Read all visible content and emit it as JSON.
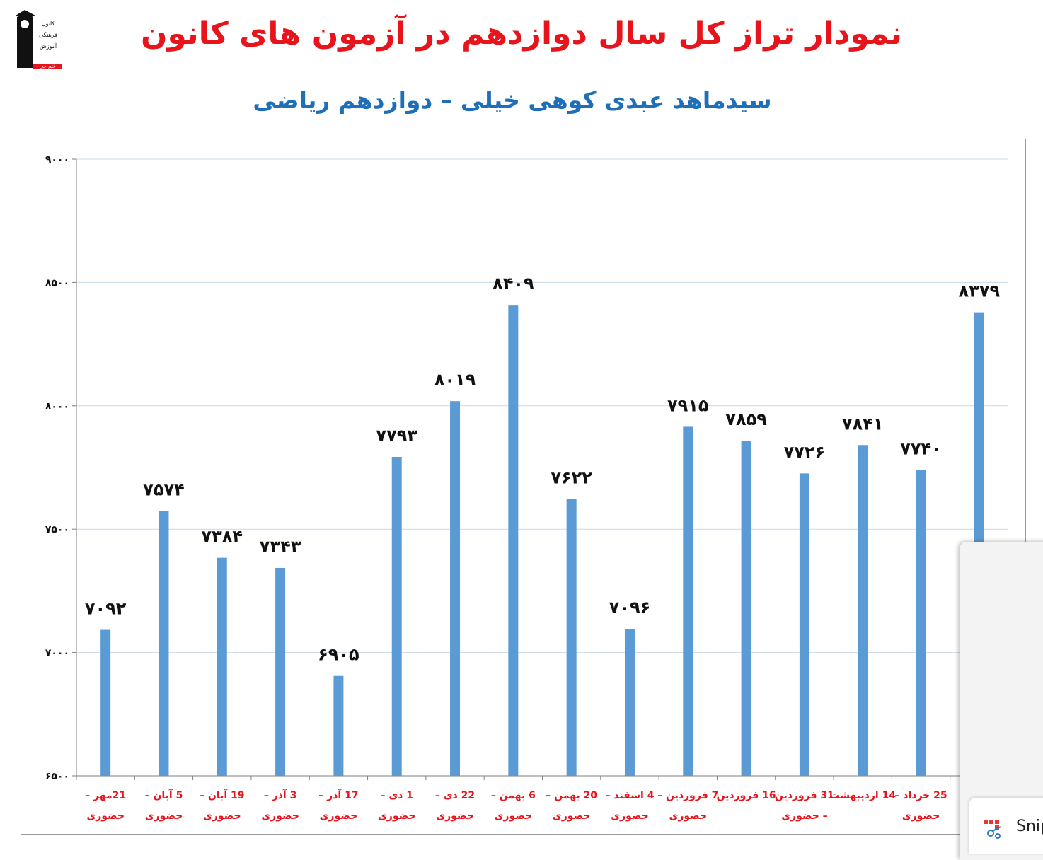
{
  "logo": {
    "lines": [
      "کانون",
      "فرهنگی",
      "آموزش",
      "قلم چی"
    ]
  },
  "chart_data": {
    "type": "bar",
    "title": "نمودار تراز کل سال دوازدهم در آزمون های کانون",
    "subtitle": "سیدماهد عبدی کوهی خیلی – دوازدهم ریاضی",
    "categories": [
      [
        "21مهر –",
        "حضوری"
      ],
      [
        "5 آبان –",
        "حضوری"
      ],
      [
        "19 آبان –",
        "حضوری"
      ],
      [
        "3 آذر –",
        "حضوری"
      ],
      [
        "17 آذر –",
        "حضوری"
      ],
      [
        "1 دی –",
        "حضوری"
      ],
      [
        "22 دی –",
        "حضوری"
      ],
      [
        "6 بهمن –",
        "حضوری"
      ],
      [
        "20 بهمن –",
        "حضوری"
      ],
      [
        "4 اسفند –",
        "حضوری"
      ],
      [
        "7 فروردین –",
        "حضوری"
      ],
      [
        "16 فروردین",
        ""
      ],
      [
        "31 فروردین",
        "– حضوری"
      ],
      [
        "14 اردیبهشت",
        ""
      ],
      [
        "25 خرداد –",
        "حضوری"
      ],
      [
        "",
        ""
      ]
    ],
    "values": [
      7092,
      7574,
      7384,
      7343,
      6905,
      7793,
      8019,
      8409,
      7622,
      7096,
      7915,
      7859,
      7726,
      7841,
      7740,
      8379
    ],
    "value_labels": [
      "۷۰۹۲",
      "۷۵۷۴",
      "۷۳۸۴",
      "۷۳۴۳",
      "۶۹۰۵",
      "۷۷۹۳",
      "۸۰۱۹",
      "۸۴۰۹",
      "۷۶۲۲",
      "۷۰۹۶",
      "۷۹۱۵",
      "۷۸۵۹",
      "۷۷۲۶",
      "۷۸۴۱",
      "۷۷۴۰",
      "۸۳۷۹"
    ],
    "ylim": [
      6500,
      9000
    ],
    "yticks": [
      6500,
      7000,
      7500,
      8000,
      8500,
      9000
    ],
    "ytick_labels": [
      "۶۵۰۰",
      "۷۰۰۰",
      "۷۵۰۰",
      "۸۰۰۰",
      "۸۵۰۰",
      "۹۰۰۰"
    ],
    "grid": true,
    "bar_color": "#5b9bd5",
    "category_color": "#e8141b",
    "xlabel": "",
    "ylabel": ""
  },
  "snipping_tool": {
    "label": "Snip"
  }
}
